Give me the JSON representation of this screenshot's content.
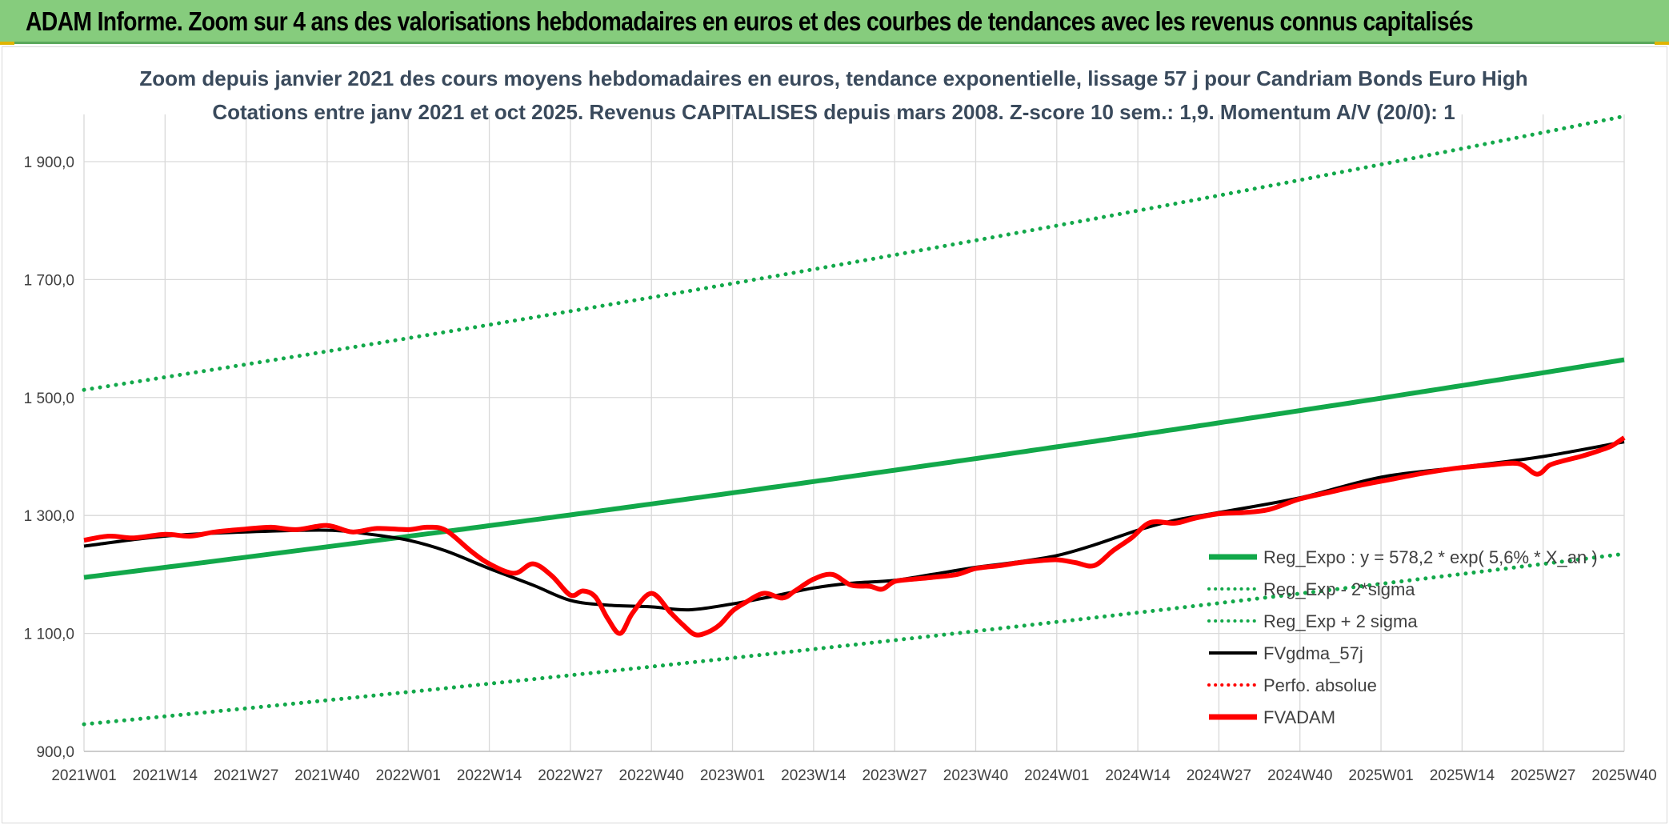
{
  "banner": {
    "title": "ADAM Informe. Zoom sur 4 ans des valorisations hebdomadaires en euros et des courbes de tendances avec les revenus connus capitalisés"
  },
  "colors": {
    "banner_bg": "#86cc7d",
    "trend_green": "#12a84a",
    "smooth_black": "#000000",
    "fvadam_red": "#ff0000",
    "grid": "#d9d9d9"
  },
  "chart_data": {
    "type": "line",
    "title_line1": "Zoom depuis janvier 2021 des cours moyens hebdomadaires en euros, tendance exponentielle, lissage 57 j pour Candriam Bonds Euro High",
    "title_line2": "Cotations entre janv 2021 et oct 2025. Revenus CAPITALISES depuis mars 2008. Z-score 10 sem.: 1,9. Momentum A/V (20/0): 1",
    "xlabel": "",
    "ylabel": "",
    "x_tick_labels": [
      "2021W01",
      "2021W14",
      "2021W27",
      "2021W40",
      "2022W01",
      "2022W14",
      "2022W27",
      "2022W40",
      "2023W01",
      "2023W14",
      "2023W27",
      "2023W40",
      "2024W01",
      "2024W14",
      "2024W27",
      "2024W40",
      "2025W01",
      "2025W14",
      "2025W27",
      "2025W40"
    ],
    "y_tick_labels": [
      "900,0",
      "1 100,0",
      "1 300,0",
      "1 500,0",
      "1 700,0",
      "1 900,0"
    ],
    "y_tick_values": [
      900,
      1100,
      1300,
      1500,
      1700,
      1900
    ],
    "ylim": [
      900,
      1980
    ],
    "week_range": [
      0,
      247
    ],
    "grid": true,
    "legend_position": "right",
    "legend": [
      {
        "label": "Reg_Expo : y = 578,2 * exp( 5,6% * X_an )",
        "style": "solid-thick",
        "color": "#12a84a"
      },
      {
        "label": "Reg_Exp - 2*sigma",
        "style": "dotted",
        "color": "#12a84a"
      },
      {
        "label": "Reg_Exp + 2 sigma",
        "style": "dotted",
        "color": "#12a84a"
      },
      {
        "label": "FVgdma_57j",
        "style": "solid",
        "color": "#000000"
      },
      {
        "label": "Perfo. absolue",
        "style": "dotted",
        "color": "#ff0000"
      },
      {
        "label": "FVADAM",
        "style": "solid-thick",
        "color": "#ff0000"
      }
    ],
    "series": [
      {
        "name": "Reg_Expo : y = 578,2 * exp( 5,6% * X_an )",
        "x": [
          0,
          247
        ],
        "y": [
          1195,
          1564
        ],
        "growth": "exponential"
      },
      {
        "name": "Reg_Exp - 2*sigma",
        "x": [
          0,
          247
        ],
        "y": [
          946,
          1235
        ],
        "growth": "exponential"
      },
      {
        "name": "Reg_Exp + 2 sigma",
        "x": [
          0,
          247
        ],
        "y": [
          1513,
          1977
        ],
        "growth": "exponential"
      },
      {
        "name": "FVgdma_57j",
        "x": [
          0,
          13,
          26,
          39,
          46,
          52,
          58,
          65,
          72,
          78,
          84,
          91,
          97,
          104,
          110,
          117,
          123,
          130,
          136,
          143,
          149,
          156,
          162,
          169,
          175,
          182,
          195,
          208,
          221,
          234,
          247
        ],
        "y": [
          1248,
          1265,
          1272,
          1275,
          1268,
          1258,
          1240,
          1210,
          1182,
          1156,
          1148,
          1145,
          1140,
          1150,
          1162,
          1177,
          1185,
          1190,
          1200,
          1212,
          1220,
          1232,
          1250,
          1275,
          1292,
          1305,
          1330,
          1365,
          1382,
          1400,
          1425
        ]
      },
      {
        "name": "FVADAM",
        "x": [
          0,
          4,
          8,
          13,
          17,
          21,
          26,
          30,
          34,
          39,
          43,
          47,
          52,
          55,
          58,
          62,
          65,
          69,
          72,
          75,
          78,
          80,
          82,
          84,
          86,
          88,
          91,
          94,
          96,
          98,
          100,
          102,
          104,
          106,
          109,
          112,
          114,
          117,
          120,
          123,
          126,
          128,
          130,
          133,
          136,
          140,
          143,
          147,
          150,
          153,
          156,
          159,
          162,
          165,
          168,
          171,
          175,
          178,
          182,
          186,
          190,
          195,
          200,
          205,
          210,
          215,
          220,
          225,
          230,
          233,
          235,
          237,
          240,
          243,
          245,
          247
        ],
        "y": [
          1258,
          1265,
          1262,
          1268,
          1265,
          1272,
          1277,
          1280,
          1276,
          1283,
          1272,
          1278,
          1276,
          1280,
          1275,
          1240,
          1218,
          1202,
          1218,
          1198,
          1165,
          1172,
          1162,
          1125,
          1100,
          1135,
          1168,
          1136,
          1115,
          1098,
          1102,
          1115,
          1138,
          1152,
          1168,
          1160,
          1172,
          1192,
          1200,
          1182,
          1180,
          1175,
          1188,
          1192,
          1195,
          1200,
          1210,
          1215,
          1220,
          1223,
          1225,
          1220,
          1215,
          1240,
          1262,
          1288,
          1287,
          1295,
          1303,
          1305,
          1310,
          1328,
          1340,
          1352,
          1362,
          1372,
          1380,
          1385,
          1388,
          1370,
          1385,
          1392,
          1400,
          1410,
          1418,
          1432
        ]
      }
    ]
  }
}
